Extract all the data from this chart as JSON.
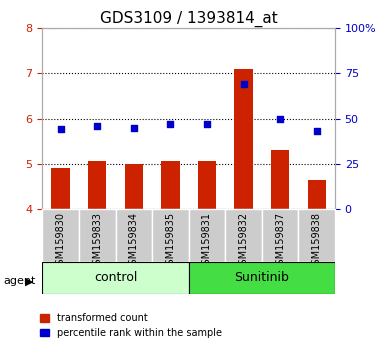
{
  "title": "GDS3109 / 1393814_at",
  "samples": [
    "GSM159830",
    "GSM159833",
    "GSM159834",
    "GSM159835",
    "GSM159831",
    "GSM159832",
    "GSM159837",
    "GSM159838"
  ],
  "groups": [
    "control",
    "control",
    "control",
    "control",
    "Sunitinib",
    "Sunitinib",
    "Sunitinib",
    "Sunitinib"
  ],
  "red_values": [
    4.9,
    5.05,
    5.0,
    5.05,
    5.07,
    7.1,
    5.3,
    4.65
  ],
  "blue_values": [
    44,
    46,
    45,
    47,
    47,
    69,
    50,
    43
  ],
  "ylim_left": [
    4.0,
    8.0
  ],
  "ylim_right": [
    0,
    100
  ],
  "yticks_left": [
    4,
    5,
    6,
    7,
    8
  ],
  "yticks_right": [
    0,
    25,
    50,
    75,
    100
  ],
  "yticklabels_right": [
    "0",
    "25",
    "50",
    "75",
    "100%"
  ],
  "bar_color": "#cc2200",
  "dot_color": "#0000cc",
  "bar_bottom": 4.0,
  "control_group_color": "#ccffcc",
  "sunitinib_group_color": "#44dd44",
  "label_box_color": "#cccccc",
  "legend_red": "transformed count",
  "legend_blue": "percentile rank within the sample",
  "left_tick_color": "#cc2200",
  "right_tick_color": "#0000cc",
  "title_fontsize": 11,
  "tick_fontsize": 8,
  "group_fontsize": 9
}
